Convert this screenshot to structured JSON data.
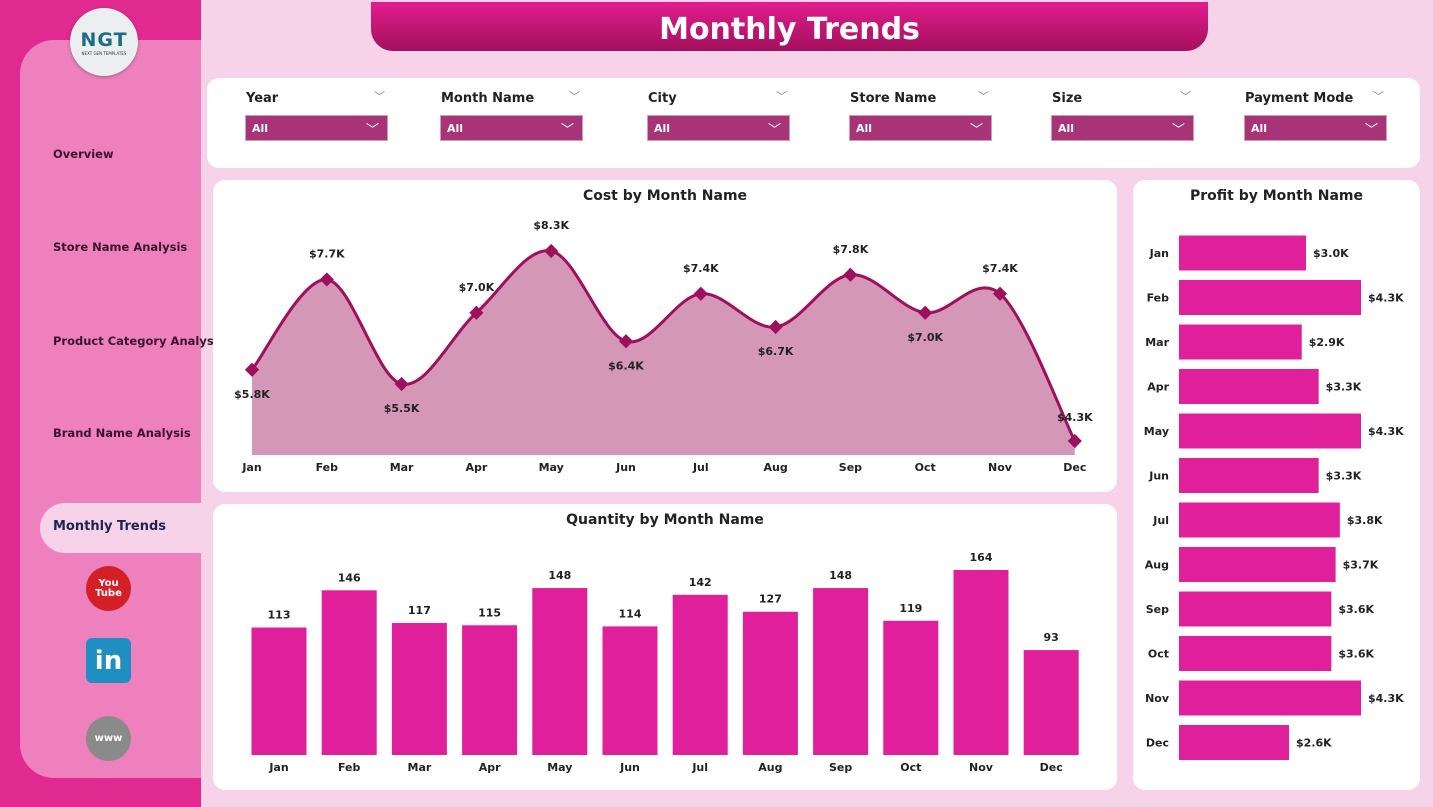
{
  "logo": {
    "text": "NGT",
    "subtitle": "NEXT GEN TEMPLATES"
  },
  "nav": [
    "Overview",
    "Store Name Analysis",
    "Product Category Analysis",
    "Brand Name Analysis",
    "Monthly Trends"
  ],
  "social": [
    {
      "icon": "youtube-icon",
      "label": "You Tube"
    },
    {
      "icon": "linkedin-icon",
      "label": "in"
    },
    {
      "icon": "globe-icon",
      "label": "www"
    }
  ],
  "title": "Monthly Trends",
  "filters": [
    {
      "label": "Year",
      "value": "All"
    },
    {
      "label": "Month Name",
      "value": "All"
    },
    {
      "label": "City",
      "value": "All"
    },
    {
      "label": "Store Name",
      "value": "All"
    },
    {
      "label": "Size",
      "value": "All"
    },
    {
      "label": "Payment Mode",
      "value": "All"
    }
  ],
  "colors": {
    "accent": "#e02a8f",
    "line": "#9e0f5c",
    "area": "#d597b7",
    "bar": "#e0209a"
  },
  "chart_data": [
    {
      "type": "area",
      "title": "Cost by Month Name",
      "categories": [
        "Jan",
        "Feb",
        "Mar",
        "Apr",
        "May",
        "Jun",
        "Jul",
        "Aug",
        "Sep",
        "Oct",
        "Nov",
        "Dec"
      ],
      "values": [
        5.8,
        7.7,
        5.5,
        7.0,
        8.3,
        6.4,
        7.4,
        6.7,
        7.8,
        7.0,
        7.4,
        4.3
      ],
      "labels": [
        "$5.8K",
        "$7.7K",
        "$5.5K",
        "$7.0K",
        "$8.3K",
        "$6.4K",
        "$7.4K",
        "$6.7K",
        "$7.8K",
        "$7.0K",
        "$7.4K",
        "$4.3K"
      ],
      "unit": "$K"
    },
    {
      "type": "bar",
      "title": "Quantity by Month Name",
      "categories": [
        "Jan",
        "Feb",
        "Mar",
        "Apr",
        "May",
        "Jun",
        "Jul",
        "Aug",
        "Sep",
        "Oct",
        "Nov",
        "Dec"
      ],
      "values": [
        113,
        146,
        117,
        115,
        148,
        114,
        142,
        127,
        148,
        119,
        164,
        93
      ]
    },
    {
      "type": "bar",
      "orientation": "horizontal",
      "title": "Profit by Month Name",
      "categories": [
        "Jan",
        "Feb",
        "Mar",
        "Apr",
        "May",
        "Jun",
        "Jul",
        "Aug",
        "Sep",
        "Oct",
        "Nov",
        "Dec"
      ],
      "values": [
        3.0,
        4.3,
        2.9,
        3.3,
        4.3,
        3.3,
        3.8,
        3.7,
        3.6,
        3.6,
        4.3,
        2.6
      ],
      "labels": [
        "$3.0K",
        "$4.3K",
        "$2.9K",
        "$3.3K",
        "$4.3K",
        "$3.3K",
        "$3.8K",
        "$3.7K",
        "$3.6K",
        "$3.6K",
        "$4.3K",
        "$2.6K"
      ],
      "unit": "$K"
    }
  ]
}
